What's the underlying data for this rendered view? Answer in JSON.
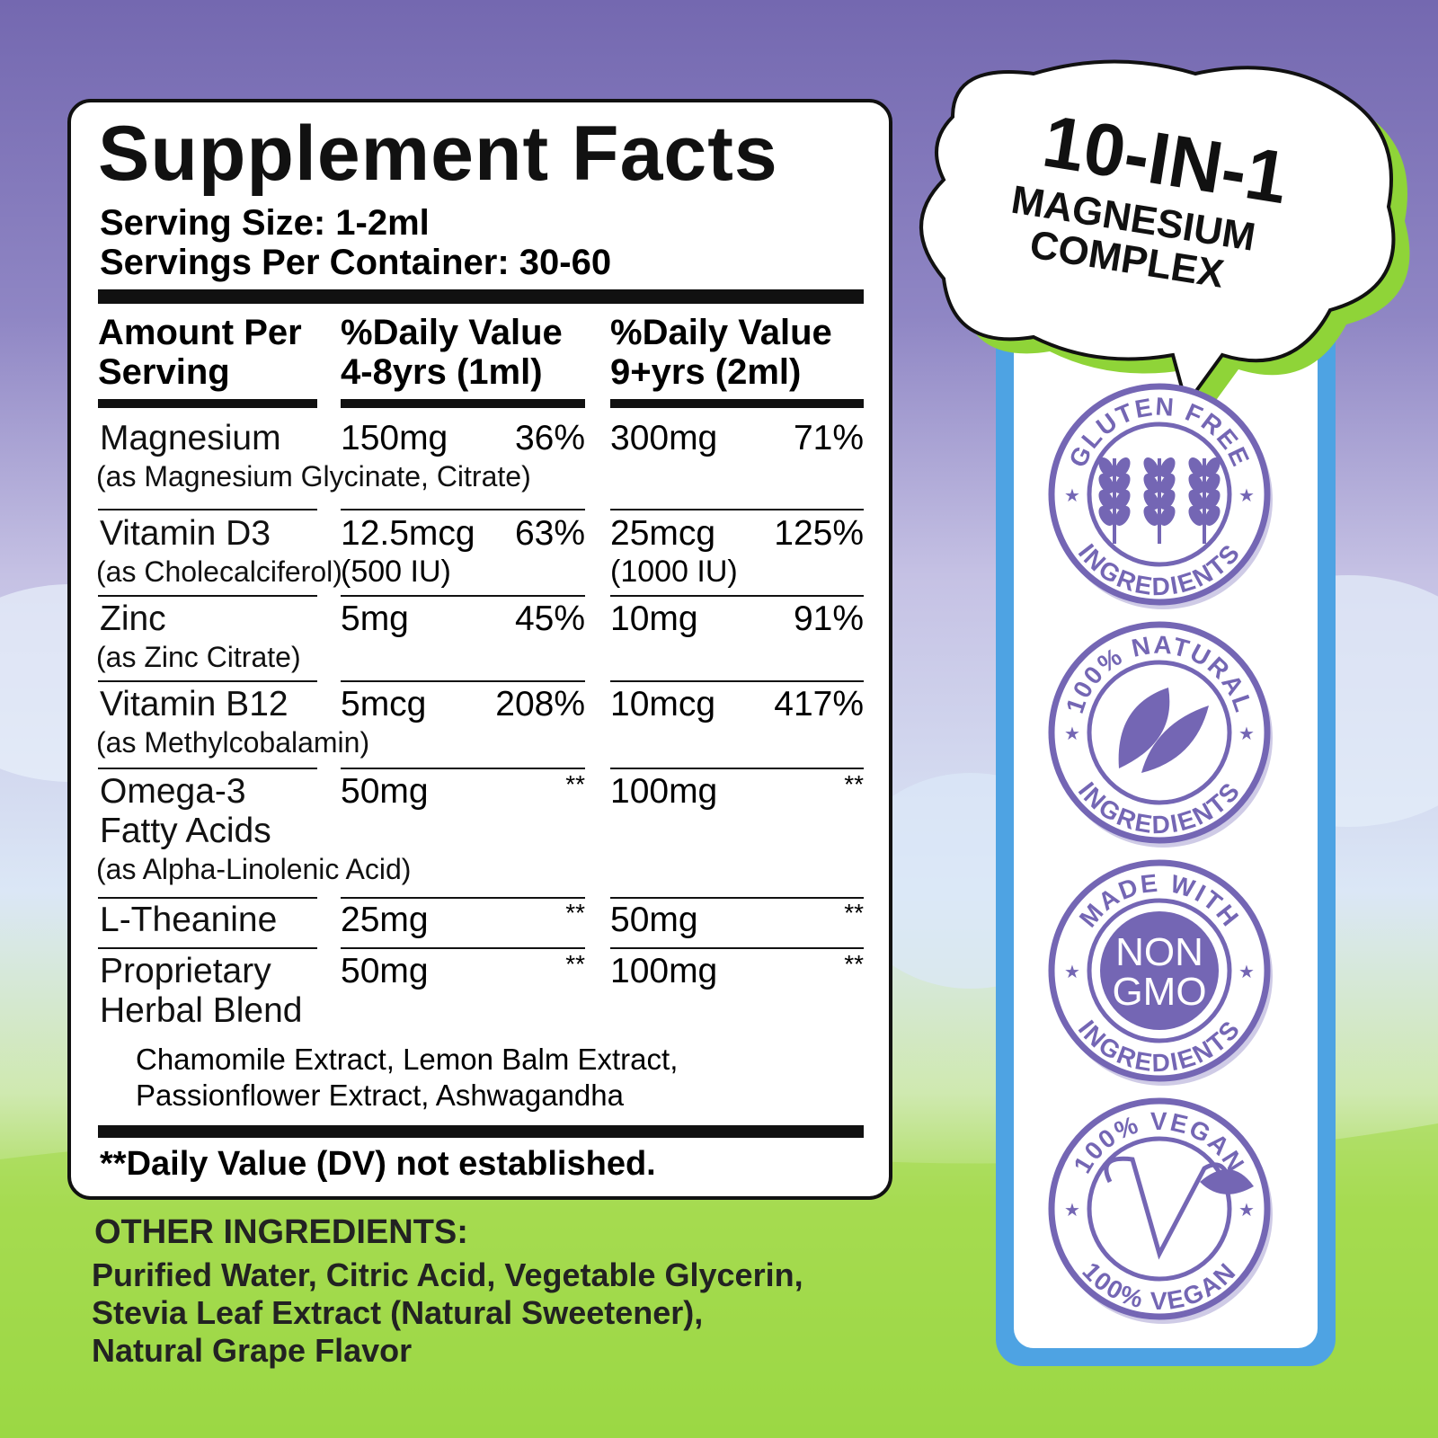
{
  "panel": {
    "title": "Supplement Facts",
    "serving_size": "Serving Size: 1-2ml",
    "servings_per_container": "Servings Per Container: 30-60",
    "columns": [
      [
        "Amount Per",
        "Serving"
      ],
      [
        "%Daily Value",
        "4-8yrs (1ml)"
      ],
      [
        "%Daily Value",
        "9+yrs (2ml)"
      ]
    ],
    "rows": [
      {
        "name": "Magnesium",
        "source": "(as Magnesium Glycinate, Citrate)",
        "child_amount": "150mg",
        "child_dv": "36%",
        "adult_amount": "300mg",
        "adult_dv": "71%"
      },
      {
        "name": "Vitamin D3",
        "source": "(as Cholecalciferol)",
        "child_amount": "12.5mcg",
        "child_dv": "63%",
        "child_note": "(500 IU)",
        "adult_amount": "25mcg",
        "adult_dv": "125%",
        "adult_note": "(1000 IU)"
      },
      {
        "name": "Zinc",
        "source": "(as Zinc Citrate)",
        "child_amount": "5mg",
        "child_dv": "45%",
        "adult_amount": "10mg",
        "adult_dv": "91%"
      },
      {
        "name": "Vitamin B12",
        "source": "(as Methylcobalamin)",
        "child_amount": "5mcg",
        "child_dv": "208%",
        "adult_amount": "10mcg",
        "adult_dv": "417%"
      },
      {
        "name": "Omega-3 Fatty Acids",
        "source": "(as Alpha-Linolenic Acid)",
        "child_amount": "50mg",
        "child_dv": "**",
        "adult_amount": "100mg",
        "adult_dv": "**"
      },
      {
        "name": "L-Theanine",
        "child_amount": "25mg",
        "child_dv": "**",
        "adult_amount": "50mg",
        "adult_dv": "**"
      },
      {
        "name": "Proprietary Herbal Blend",
        "child_amount": "50mg",
        "child_dv": "**",
        "adult_amount": "100mg",
        "adult_dv": "**"
      }
    ],
    "blend_ingredients": [
      "Chamomile Extract, Lemon Balm Extract,",
      "Passionflower Extract, Ashwagandha"
    ],
    "footnote": "**Daily Value (DV) not established."
  },
  "other_ingredients": {
    "heading": "OTHER INGREDIENTS:",
    "lines": [
      "Purified Water, Citric Acid, Vegetable Glycerin,",
      "Stevia Leaf Extract (Natural Sweetener),",
      "Natural Grape Flavor"
    ]
  },
  "bubble": {
    "headline": "10-IN-1",
    "lines": [
      "MAGNESIUM",
      "COMPLEX"
    ]
  },
  "badges": [
    {
      "top": "GLUTEN FREE",
      "bottom": "INGREDIENTS"
    },
    {
      "top": "100% NATURAL",
      "bottom": "INGREDIENTS"
    },
    {
      "top": "MADE WITH",
      "center": [
        "NON",
        "GMO"
      ],
      "bottom": "INGREDIENTS"
    },
    {
      "top": "100% VEGAN",
      "bottom": "100% VEGAN"
    }
  ]
}
